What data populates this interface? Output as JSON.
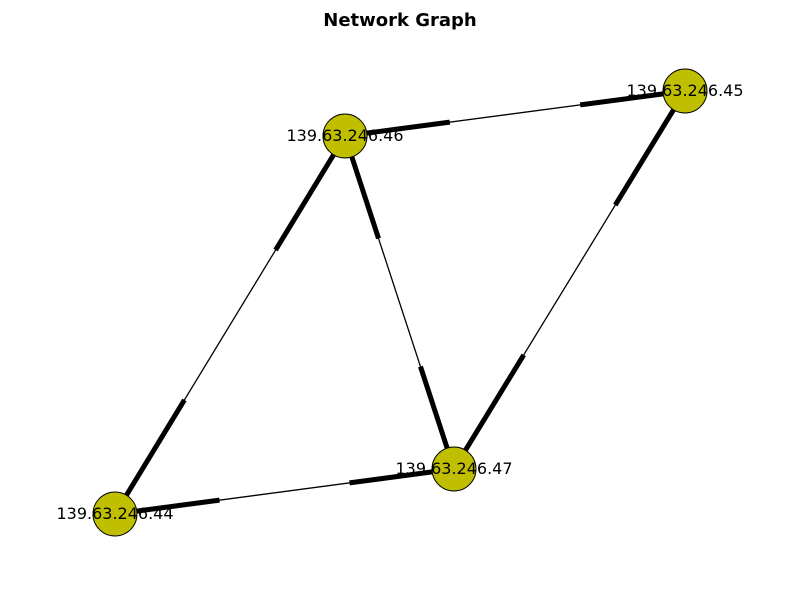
{
  "title": "Network Graph",
  "node_color": "#bfbf00",
  "edge_color": "#000000",
  "nodes": [
    {
      "id": "n44",
      "label": "139.63.246.44"
    },
    {
      "id": "n45",
      "label": "139.63.246.45"
    },
    {
      "id": "n46",
      "label": "139.63.246.46"
    },
    {
      "id": "n47",
      "label": "139.63.246.47"
    }
  ],
  "edges": [
    {
      "source": "n46",
      "target": "n45",
      "directed": true
    },
    {
      "source": "n44",
      "target": "n46",
      "directed": true
    },
    {
      "source": "n46",
      "target": "n47",
      "directed": true
    },
    {
      "source": "n47",
      "target": "n45",
      "directed": true
    },
    {
      "source": "n44",
      "target": "n47",
      "directed": true
    }
  ]
}
